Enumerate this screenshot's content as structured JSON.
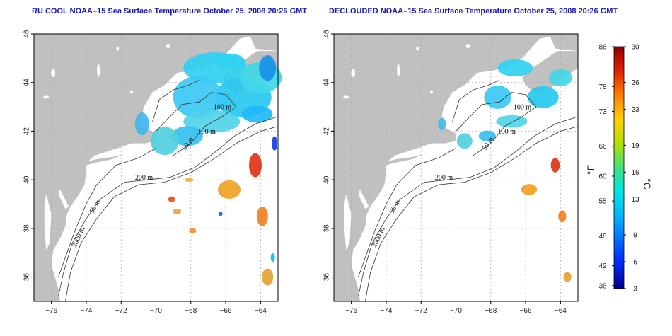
{
  "panels": [
    {
      "id": "left",
      "title": "RU COOL NOAA–15 Sea Surface Temperature October 25, 2008 20:26 GMT",
      "contour_labels": [
        "100 m",
        "100 m",
        "50 m",
        "200 m",
        "50 m",
        "2000 m"
      ]
    },
    {
      "id": "right",
      "title": "DECLOUDED NOAA–15 Sea Surface Temperature October 25, 2008 20:26 GMT",
      "contour_labels": [
        "100 m",
        "100 m",
        "50 m",
        "200 m",
        "50 m",
        "2000 m"
      ]
    }
  ],
  "map": {
    "x_ticks": [
      "−76",
      "−74",
      "−72",
      "−70",
      "−68",
      "−66",
      "−64"
    ],
    "y_ticks": [
      "36",
      "38",
      "40",
      "42",
      "44",
      "46"
    ],
    "lon_range": [
      -77,
      -63
    ],
    "lat_range": [
      35,
      46
    ],
    "grid": true,
    "colors": {
      "land": "#c0c0c0",
      "ocean": "#ffffff",
      "grid": "#aaaaaa",
      "title": "#1a1ab0"
    }
  },
  "colorbar": {
    "f_ticks": [
      "86",
      "78",
      "73",
      "66",
      "60",
      "55",
      "48",
      "42",
      "38"
    ],
    "c_ticks": [
      "30",
      "26",
      "23",
      "19",
      "16",
      "13",
      "9",
      "6",
      "3"
    ],
    "f_label": "°F",
    "c_label": "°C",
    "range_c": [
      3,
      30
    ],
    "colors": [
      "#0000a0",
      "#0040ff",
      "#00a0ff",
      "#00e0e0",
      "#40e080",
      "#c0e000",
      "#ffc000",
      "#ff6000",
      "#c00000",
      "#800000"
    ]
  }
}
